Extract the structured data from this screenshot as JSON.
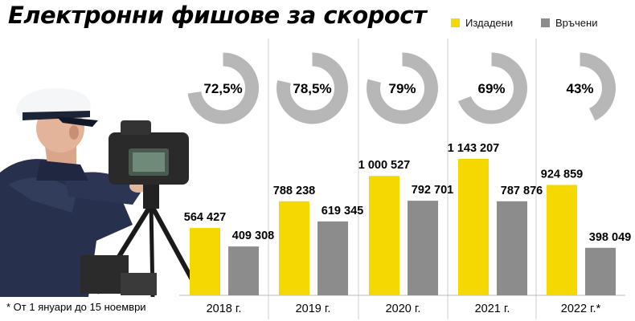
{
  "title": "Електронни фишове за скорост",
  "footnote": "* От 1 януари до 15 ноември",
  "legend": [
    {
      "label": "Издадени",
      "color": "#f5d800"
    },
    {
      "label": "Връчени",
      "color": "#8c8c8c"
    }
  ],
  "chart_data": {
    "type": "bar",
    "title": "Електронни фишове за скорост",
    "categories": [
      "2018 г.",
      "2019 г.",
      "2020 г.",
      "2021 г.",
      "2022 г.*"
    ],
    "series": [
      {
        "name": "Издадени",
        "color": "#f5d800",
        "values": [
          564427,
          788238,
          1000527,
          1143207,
          924859
        ],
        "value_labels": [
          "564 427",
          "788 238",
          "1 000 527",
          "1 143 207",
          "924 859"
        ]
      },
      {
        "name": "Връчени",
        "color": "#8c8c8c",
        "values": [
          409308,
          619345,
          792701,
          787876,
          398049
        ],
        "value_labels": [
          "409 308",
          "619 345",
          "792 701",
          "787 876",
          "398 049"
        ]
      }
    ],
    "percent_delivered": [
      72.5,
      78.5,
      79,
      69,
      43
    ],
    "percent_labels": [
      "72,5%",
      "78,5%",
      "79%",
      "69%",
      "43%"
    ],
    "ylim": [
      0,
      1143207
    ],
    "grid": false,
    "legend_position": "top-right"
  }
}
